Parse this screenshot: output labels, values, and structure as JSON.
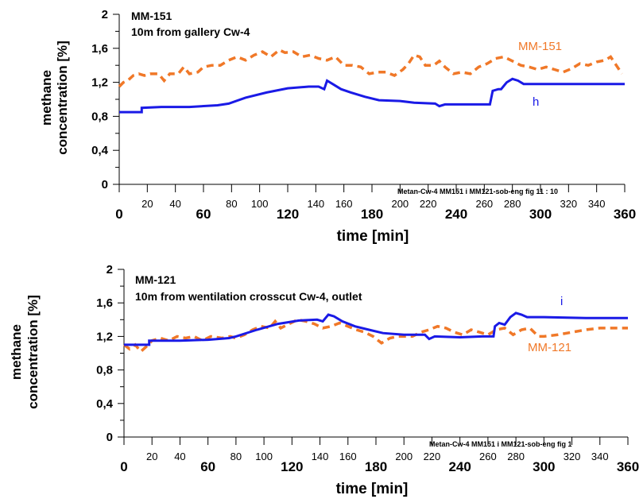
{
  "chart_data": [
    {
      "type": "line",
      "ylabel_line1": "methane",
      "ylabel_line2": "concentration [%]",
      "xlabel": "time [min]",
      "annotation_line1": "MM-151",
      "annotation_line2": "10m from gallery Cw-4",
      "source_note": "Metan-Cw-4   MM151 i MM121-sob-eng fig 11 : 10",
      "xlim": [
        0,
        360
      ],
      "ylim": [
        0,
        2
      ],
      "x_major_ticks": [
        "0",
        "60",
        "120",
        "180",
        "240",
        "300",
        "360"
      ],
      "x_minor_ticks": [
        "20",
        "40",
        "80",
        "100",
        "140",
        "160",
        "200",
        "220",
        "260",
        "280",
        "320",
        "340"
      ],
      "y_ticks": [
        "0",
        "0,4",
        "0,8",
        "1,2",
        "1,6",
        "2"
      ],
      "series": [
        {
          "name": "MM-151",
          "color": "#F07828",
          "style": "dashed",
          "points": [
            [
              0,
              1.15
            ],
            [
              3,
              1.2
            ],
            [
              6,
              1.22
            ],
            [
              10,
              1.28
            ],
            [
              14,
              1.3
            ],
            [
              18,
              1.28
            ],
            [
              22,
              1.3
            ],
            [
              28,
              1.3
            ],
            [
              32,
              1.22
            ],
            [
              36,
              1.3
            ],
            [
              42,
              1.3
            ],
            [
              46,
              1.38
            ],
            [
              50,
              1.3
            ],
            [
              56,
              1.32
            ],
            [
              60,
              1.38
            ],
            [
              66,
              1.4
            ],
            [
              72,
              1.4
            ],
            [
              78,
              1.46
            ],
            [
              84,
              1.5
            ],
            [
              90,
              1.46
            ],
            [
              96,
              1.52
            ],
            [
              102,
              1.56
            ],
            [
              108,
              1.5
            ],
            [
              114,
              1.58
            ],
            [
              118,
              1.55
            ],
            [
              124,
              1.56
            ],
            [
              130,
              1.5
            ],
            [
              136,
              1.52
            ],
            [
              142,
              1.48
            ],
            [
              148,
              1.46
            ],
            [
              154,
              1.5
            ],
            [
              160,
              1.4
            ],
            [
              166,
              1.4
            ],
            [
              172,
              1.38
            ],
            [
              178,
              1.3
            ],
            [
              184,
              1.32
            ],
            [
              190,
              1.32
            ],
            [
              196,
              1.28
            ],
            [
              202,
              1.35
            ],
            [
              206,
              1.42
            ],
            [
              210,
              1.52
            ],
            [
              214,
              1.5
            ],
            [
              218,
              1.4
            ],
            [
              224,
              1.4
            ],
            [
              228,
              1.45
            ],
            [
              232,
              1.38
            ],
            [
              238,
              1.3
            ],
            [
              244,
              1.32
            ],
            [
              250,
              1.3
            ],
            [
              256,
              1.38
            ],
            [
              262,
              1.42
            ],
            [
              268,
              1.48
            ],
            [
              274,
              1.5
            ],
            [
              280,
              1.45
            ],
            [
              286,
              1.4
            ],
            [
              292,
              1.38
            ],
            [
              298,
              1.35
            ],
            [
              304,
              1.38
            ],
            [
              310,
              1.35
            ],
            [
              316,
              1.32
            ],
            [
              322,
              1.36
            ],
            [
              328,
              1.42
            ],
            [
              334,
              1.4
            ],
            [
              340,
              1.44
            ],
            [
              346,
              1.46
            ],
            [
              350,
              1.5
            ],
            [
              354,
              1.4
            ],
            [
              358,
              1.3
            ]
          ]
        },
        {
          "name": "h",
          "color": "#1A1AE6",
          "style": "solid",
          "points": [
            [
              0,
              0.85
            ],
            [
              16,
              0.85
            ],
            [
              16,
              0.9
            ],
            [
              30,
              0.91
            ],
            [
              50,
              0.91
            ],
            [
              70,
              0.93
            ],
            [
              78,
              0.95
            ],
            [
              90,
              1.02
            ],
            [
              105,
              1.08
            ],
            [
              120,
              1.13
            ],
            [
              135,
              1.15
            ],
            [
              142,
              1.15
            ],
            [
              146,
              1.12
            ],
            [
              148,
              1.22
            ],
            [
              152,
              1.18
            ],
            [
              158,
              1.12
            ],
            [
              165,
              1.08
            ],
            [
              175,
              1.03
            ],
            [
              185,
              0.99
            ],
            [
              200,
              0.98
            ],
            [
              210,
              0.96
            ],
            [
              225,
              0.95
            ],
            [
              228,
              0.92
            ],
            [
              232,
              0.94
            ],
            [
              250,
              0.94
            ],
            [
              264,
              0.94
            ],
            [
              266,
              1.1
            ],
            [
              270,
              1.12
            ],
            [
              272,
              1.12
            ],
            [
              276,
              1.2
            ],
            [
              280,
              1.24
            ],
            [
              284,
              1.22
            ],
            [
              288,
              1.18
            ],
            [
              300,
              1.18
            ],
            [
              330,
              1.18
            ],
            [
              360,
              1.18
            ]
          ]
        }
      ]
    },
    {
      "type": "line",
      "ylabel_line1": "methane",
      "ylabel_line2": "concentration [%]",
      "xlabel": "time [min]",
      "annotation_line1": "MM-121",
      "annotation_line2": "10m from wentilation crosscut  Cw-4, outlet",
      "source_note": "Metan-Cw-4   MM151 i MM121-sob-eng fig 1",
      "xlim": [
        0,
        360
      ],
      "ylim": [
        0,
        2
      ],
      "x_major_ticks": [
        "0",
        "60",
        "120",
        "180",
        "240",
        "300",
        "360"
      ],
      "x_minor_ticks": [
        "20",
        "40",
        "80",
        "100",
        "140",
        "160",
        "200",
        "220",
        "260",
        "280",
        "320",
        "340"
      ],
      "y_ticks": [
        "0",
        "0,4",
        "0,8",
        "1,2",
        "1,6",
        "2"
      ],
      "series": [
        {
          "name": "MM-121",
          "color": "#F07828",
          "style": "dashed",
          "points": [
            [
              0,
              1.1
            ],
            [
              4,
              1.05
            ],
            [
              8,
              1.1
            ],
            [
              12,
              1.02
            ],
            [
              16,
              1.08
            ],
            [
              20,
              1.15
            ],
            [
              26,
              1.18
            ],
            [
              32,
              1.15
            ],
            [
              38,
              1.2
            ],
            [
              44,
              1.18
            ],
            [
              50,
              1.2
            ],
            [
              56,
              1.15
            ],
            [
              62,
              1.2
            ],
            [
              70,
              1.18
            ],
            [
              76,
              1.2
            ],
            [
              80,
              1.18
            ],
            [
              86,
              1.22
            ],
            [
              92,
              1.28
            ],
            [
              98,
              1.32
            ],
            [
              104,
              1.3
            ],
            [
              108,
              1.38
            ],
            [
              112,
              1.3
            ],
            [
              118,
              1.35
            ],
            [
              124,
              1.4
            ],
            [
              130,
              1.38
            ],
            [
              136,
              1.35
            ],
            [
              142,
              1.3
            ],
            [
              148,
              1.32
            ],
            [
              154,
              1.36
            ],
            [
              160,
              1.32
            ],
            [
              166,
              1.28
            ],
            [
              172,
              1.25
            ],
            [
              178,
              1.2
            ],
            [
              184,
              1.12
            ],
            [
              190,
              1.18
            ],
            [
              196,
              1.2
            ],
            [
              200,
              1.2
            ],
            [
              206,
              1.2
            ],
            [
              212,
              1.25
            ],
            [
              218,
              1.28
            ],
            [
              224,
              1.32
            ],
            [
              230,
              1.3
            ],
            [
              236,
              1.25
            ],
            [
              242,
              1.22
            ],
            [
              248,
              1.28
            ],
            [
              254,
              1.25
            ],
            [
              260,
              1.22
            ],
            [
              266,
              1.28
            ],
            [
              272,
              1.3
            ],
            [
              278,
              1.22
            ],
            [
              284,
              1.28
            ],
            [
              290,
              1.3
            ],
            [
              296,
              1.2
            ],
            [
              300,
              1.2
            ],
            [
              310,
              1.22
            ],
            [
              320,
              1.25
            ],
            [
              330,
              1.28
            ],
            [
              340,
              1.3
            ],
            [
              350,
              1.3
            ],
            [
              360,
              1.3
            ]
          ]
        },
        {
          "name": "i",
          "color": "#1A1AE6",
          "style": "solid",
          "points": [
            [
              0,
              1.1
            ],
            [
              18,
              1.1
            ],
            [
              18,
              1.15
            ],
            [
              40,
              1.15
            ],
            [
              60,
              1.16
            ],
            [
              75,
              1.18
            ],
            [
              80,
              1.2
            ],
            [
              95,
              1.28
            ],
            [
              110,
              1.35
            ],
            [
              125,
              1.39
            ],
            [
              138,
              1.4
            ],
            [
              142,
              1.38
            ],
            [
              146,
              1.46
            ],
            [
              150,
              1.44
            ],
            [
              156,
              1.38
            ],
            [
              165,
              1.32
            ],
            [
              175,
              1.28
            ],
            [
              185,
              1.24
            ],
            [
              200,
              1.22
            ],
            [
              210,
              1.22
            ],
            [
              215,
              1.22
            ],
            [
              218,
              1.17
            ],
            [
              222,
              1.2
            ],
            [
              240,
              1.19
            ],
            [
              256,
              1.2
            ],
            [
              264,
              1.2
            ],
            [
              265,
              1.32
            ],
            [
              268,
              1.36
            ],
            [
              272,
              1.34
            ],
            [
              276,
              1.43
            ],
            [
              280,
              1.48
            ],
            [
              284,
              1.46
            ],
            [
              288,
              1.43
            ],
            [
              300,
              1.43
            ],
            [
              330,
              1.42
            ],
            [
              360,
              1.42
            ]
          ]
        }
      ]
    }
  ]
}
